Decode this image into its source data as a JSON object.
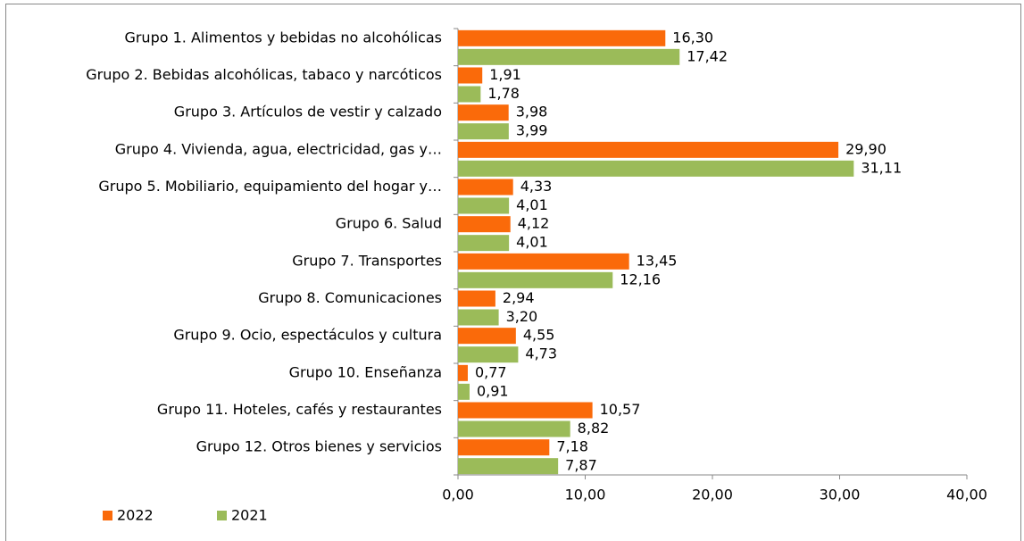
{
  "chart_data": {
    "type": "hbar",
    "categories": [
      "Grupo 1. Alimentos y bebidas no alcohólicas",
      "Grupo 2. Bebidas alcohólicas, tabaco y narcóticos",
      "Grupo 3. Artículos de vestir y calzado",
      "Grupo 4. Vivienda, agua, electricidad, gas y…",
      "Grupo 5. Mobiliario, equipamiento del hogar y…",
      "Grupo 6. Salud",
      "Grupo 7. Transportes",
      "Grupo 8. Comunicaciones",
      "Grupo 9. Ocio, espectáculos y cultura",
      "Grupo 10. Enseñanza",
      "Grupo 11. Hoteles, cafés y restaurantes",
      "Grupo 12. Otros bienes y servicios"
    ],
    "series": [
      {
        "name": "2022",
        "color": "#fa6a0a",
        "values": [
          16.3,
          1.91,
          3.98,
          29.9,
          4.33,
          4.12,
          13.45,
          2.94,
          4.55,
          0.77,
          10.57,
          7.18
        ],
        "value_labels": [
          "16,30",
          "1,91",
          "3,98",
          "29,90",
          "4,33",
          "4,12",
          "13,45",
          "2,94",
          "4,55",
          "0,77",
          "10,57",
          "7,18"
        ]
      },
      {
        "name": "2021",
        "color": "#9bbb59",
        "values": [
          17.42,
          1.78,
          3.99,
          31.11,
          4.01,
          4.01,
          12.16,
          3.2,
          4.73,
          0.91,
          8.82,
          7.87
        ],
        "value_labels": [
          "17,42",
          "1,78",
          "3,99",
          "31,11",
          "4,01",
          "4,01",
          "12,16",
          "3,20",
          "4,73",
          "0,91",
          "8,82",
          "7,87"
        ]
      }
    ],
    "xlim": [
      0,
      40
    ],
    "xticks": [
      {
        "value": 0,
        "label": "0,00"
      },
      {
        "value": 10,
        "label": "10,00"
      },
      {
        "value": 20,
        "label": "20,00"
      },
      {
        "value": 30,
        "label": "30,00"
      },
      {
        "value": 40,
        "label": "40,00"
      }
    ],
    "legend": "bottom-left"
  }
}
